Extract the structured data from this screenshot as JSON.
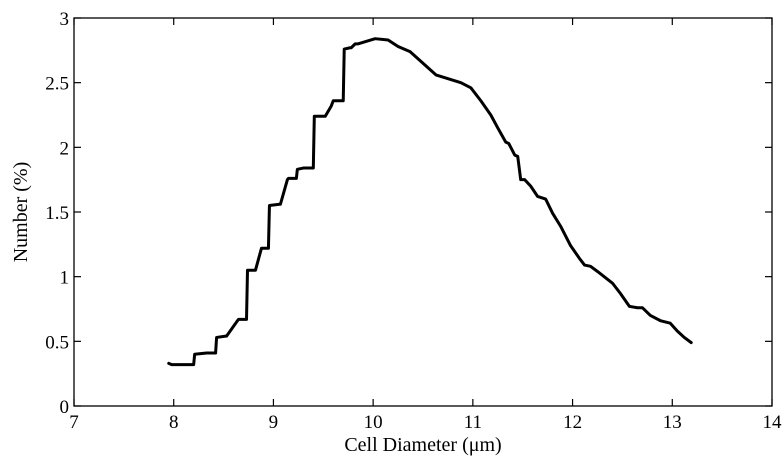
{
  "chart_data": {
    "type": "line",
    "title": "",
    "xlabel": "Cell Diameter (μm)",
    "ylabel": "Number (%)",
    "xlim": [
      7,
      14
    ],
    "ylim": [
      0,
      3
    ],
    "x_ticks": [
      "7",
      "8",
      "9",
      "10",
      "11",
      "12",
      "13",
      "14"
    ],
    "y_ticks": [
      "0",
      "0.5",
      "1",
      "1.5",
      "2",
      "2.5",
      "3"
    ],
    "grid": false,
    "line_color": "#000000",
    "series": [
      {
        "x": [
          7.95,
          7.98,
          8.05,
          8.2,
          8.21,
          8.33,
          8.34,
          8.42,
          8.43,
          8.52,
          8.53,
          8.64,
          8.65,
          8.73,
          8.74,
          8.81,
          8.82,
          8.88,
          8.89,
          8.95,
          8.96,
          9.06,
          9.07,
          9.14,
          9.15,
          9.23,
          9.24,
          9.3,
          9.31,
          9.4,
          9.41,
          9.51,
          9.52,
          9.58,
          9.6,
          9.7,
          9.71,
          9.77,
          9.78,
          9.82,
          9.85,
          10.02,
          10.15,
          10.25,
          10.37,
          10.5,
          10.63,
          10.88,
          10.98,
          11.08,
          11.18,
          11.25,
          11.33,
          11.36,
          11.42,
          11.45,
          11.48,
          11.52,
          11.58,
          11.65,
          11.73,
          11.8,
          11.88,
          11.98,
          12.07,
          12.12,
          12.18,
          12.25,
          12.4,
          12.48,
          12.57,
          12.65,
          12.7,
          12.78,
          12.88,
          12.98,
          13.05,
          13.12,
          13.19
        ],
        "y": [
          0.33,
          0.32,
          0.32,
          0.32,
          0.4,
          0.41,
          0.41,
          0.41,
          0.53,
          0.54,
          0.54,
          0.66,
          0.67,
          0.67,
          1.05,
          1.05,
          1.05,
          1.22,
          1.22,
          1.22,
          1.55,
          1.56,
          1.56,
          1.75,
          1.76,
          1.76,
          1.83,
          1.84,
          1.84,
          1.84,
          2.24,
          2.24,
          2.24,
          2.32,
          2.36,
          2.36,
          2.76,
          2.77,
          2.77,
          2.8,
          2.8,
          2.84,
          2.83,
          2.78,
          2.74,
          2.65,
          2.56,
          2.5,
          2.46,
          2.36,
          2.25,
          2.15,
          2.04,
          2.03,
          1.94,
          1.93,
          1.75,
          1.75,
          1.7,
          1.62,
          1.6,
          1.49,
          1.39,
          1.24,
          1.14,
          1.09,
          1.08,
          1.04,
          0.95,
          0.87,
          0.77,
          0.76,
          0.76,
          0.7,
          0.66,
          0.64,
          0.58,
          0.53,
          0.49
        ]
      }
    ]
  }
}
